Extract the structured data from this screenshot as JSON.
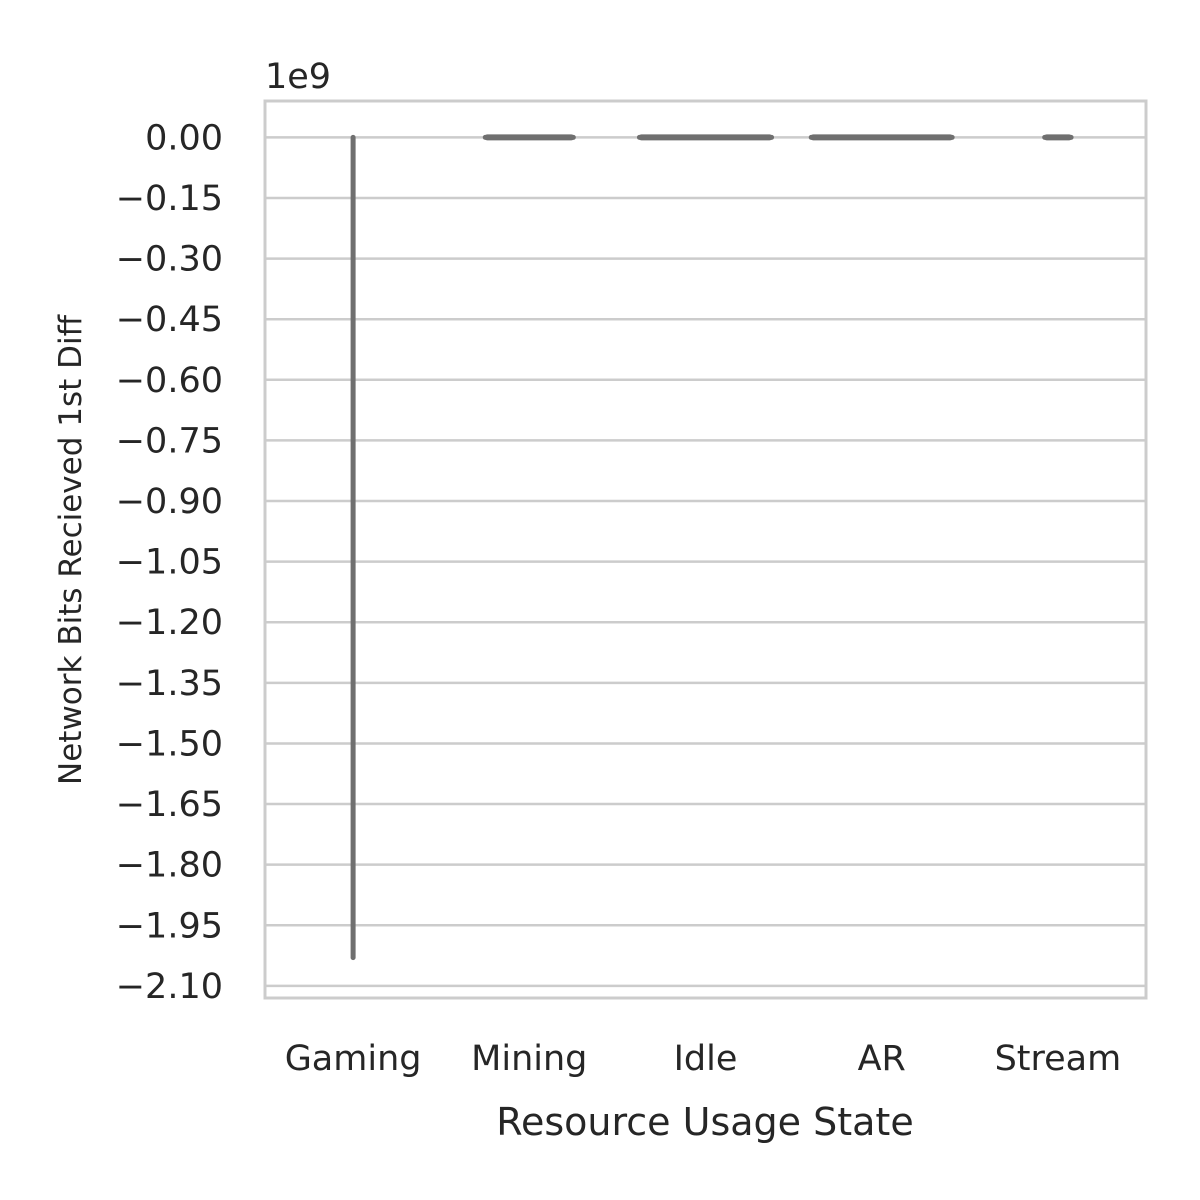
{
  "chart_data": {
    "type": "box",
    "xlabel": "Resource Usage State",
    "ylabel": "Network Bits Recieved 1st Diff",
    "y_offset_label": "1e9",
    "y_scale": 1000000000,
    "ylim": [
      -2.13,
      0.09
    ],
    "yticks": [
      0.0,
      -0.15,
      -0.3,
      -0.45,
      -0.6,
      -0.75,
      -0.9,
      -1.05,
      -1.2,
      -1.35,
      -1.5,
      -1.65,
      -1.8,
      -1.95,
      -2.1
    ],
    "ytick_labels": [
      "0.00",
      "−0.15",
      "−0.30",
      "−0.45",
      "−0.60",
      "−0.75",
      "−0.90",
      "−1.05",
      "−1.20",
      "−1.35",
      "−1.50",
      "−1.65",
      "−1.80",
      "−1.95",
      "−2.10"
    ],
    "grid": true,
    "categories": [
      "Gaming",
      "Mining",
      "Idle",
      "AR",
      "Stream"
    ],
    "boxes": [
      {
        "category": "Gaming",
        "whisker_low": -2.03,
        "q1": 0.0,
        "median": 0.0,
        "q3": 0.0,
        "whisker_high": 0.0,
        "width_fraction": 0.0
      },
      {
        "category": "Mining",
        "whisker_low": 0.0,
        "q1": 0.0,
        "median": 0.0,
        "q3": 0.0,
        "whisker_high": 0.0,
        "width_fraction": 0.5
      },
      {
        "category": "Idle",
        "whisker_low": 0.0,
        "q1": 0.0,
        "median": 0.0,
        "q3": 0.0,
        "whisker_high": 0.0,
        "width_fraction": 0.75
      },
      {
        "category": "AR",
        "whisker_low": 0.0,
        "q1": 0.0,
        "median": 0.0,
        "q3": 0.0,
        "whisker_high": 0.0,
        "width_fraction": 0.8
      },
      {
        "category": "Stream",
        "whisker_low": 0.0,
        "q1": 0.0,
        "median": 0.0,
        "q3": 0.0,
        "whisker_high": 0.0,
        "width_fraction": 0.15
      }
    ],
    "colors": {
      "box_line": "#6f6f6f",
      "grid": "#cccccc",
      "spine": "#cccccc",
      "text": "#262626"
    }
  }
}
